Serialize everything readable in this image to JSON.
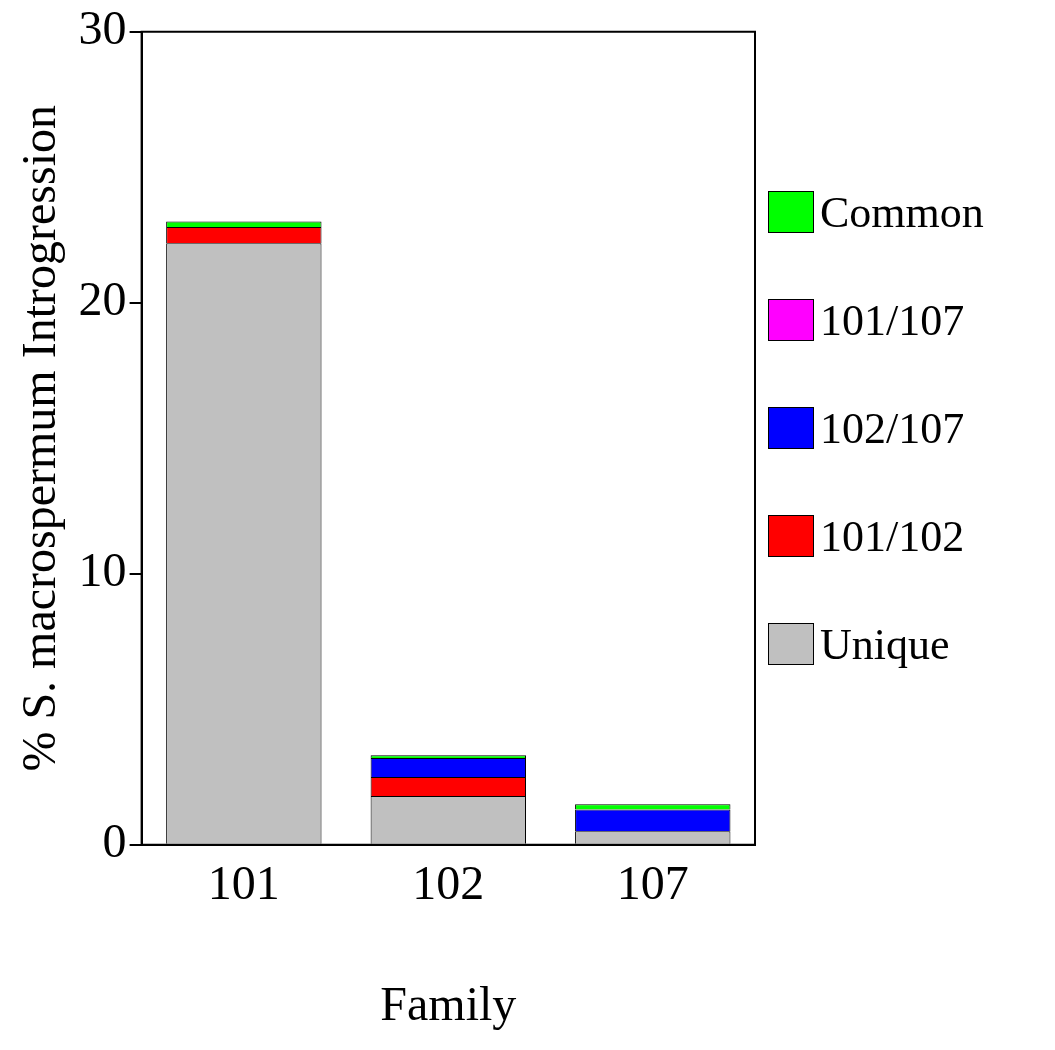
{
  "chart_data": {
    "type": "bar",
    "stacked": true,
    "xlabel": "Family",
    "ylabel": "% S. macrospermum Introgression",
    "categories": [
      "101",
      "102",
      "107"
    ],
    "series": [
      {
        "name": "Unique",
        "color": "#c0c0c0",
        "values": [
          22.2,
          1.8,
          0.5
        ]
      },
      {
        "name": "101/102",
        "color": "#ff0000",
        "values": [
          0.6,
          0.7,
          0
        ]
      },
      {
        "name": "102/107",
        "color": "#0000ff",
        "values": [
          0,
          0.7,
          0.8
        ]
      },
      {
        "name": "101/107",
        "color": "#ff00ff",
        "values": [
          0,
          0,
          0
        ]
      },
      {
        "name": "Common",
        "color": "#00ff00",
        "values": [
          0.2,
          0.1,
          0.2
        ]
      }
    ],
    "ylim": [
      0,
      30
    ],
    "yticks": [
      0,
      10,
      20,
      30
    ],
    "grid": false,
    "legend": "right"
  }
}
